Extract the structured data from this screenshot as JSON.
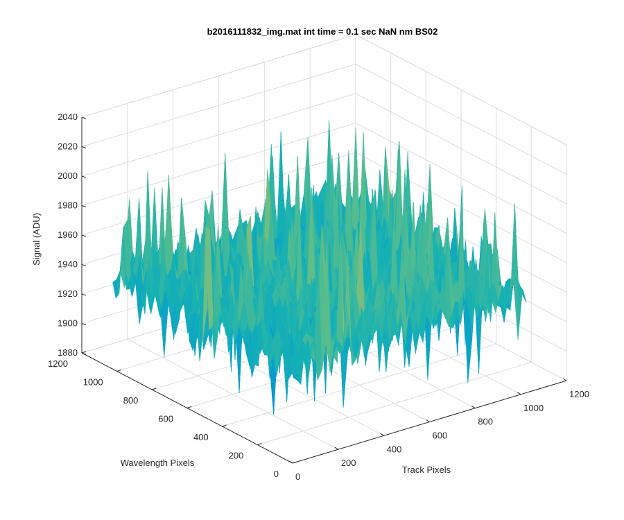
{
  "chart_data": {
    "type": "surface",
    "title": "b2016111832_img.mat int time = 0.1 sec  NaN nm BS02",
    "xlabel": "Track Pixels",
    "ylabel": "Wavelength Pixels",
    "zlabel": "Signal (ADU)",
    "xlim": [
      0,
      1200
    ],
    "ylim": [
      0,
      1200
    ],
    "zlim": [
      1880,
      2040
    ],
    "x_ticks": [
      "0",
      "200",
      "400",
      "600",
      "800",
      "1000",
      "1200"
    ],
    "y_ticks": [
      "0",
      "200",
      "400",
      "600",
      "800",
      "1000",
      "1200"
    ],
    "z_ticks": [
      "1880",
      "1900",
      "1920",
      "1940",
      "1960",
      "1980",
      "2000",
      "2020",
      "2040"
    ],
    "surface_extent": {
      "x": [
        0,
        1024
      ],
      "y": [
        0,
        1024
      ]
    },
    "surface_mean_signal": 1945,
    "surface_noise_range": [
      1890,
      2020
    ],
    "grid": true,
    "colormap": "parula"
  }
}
